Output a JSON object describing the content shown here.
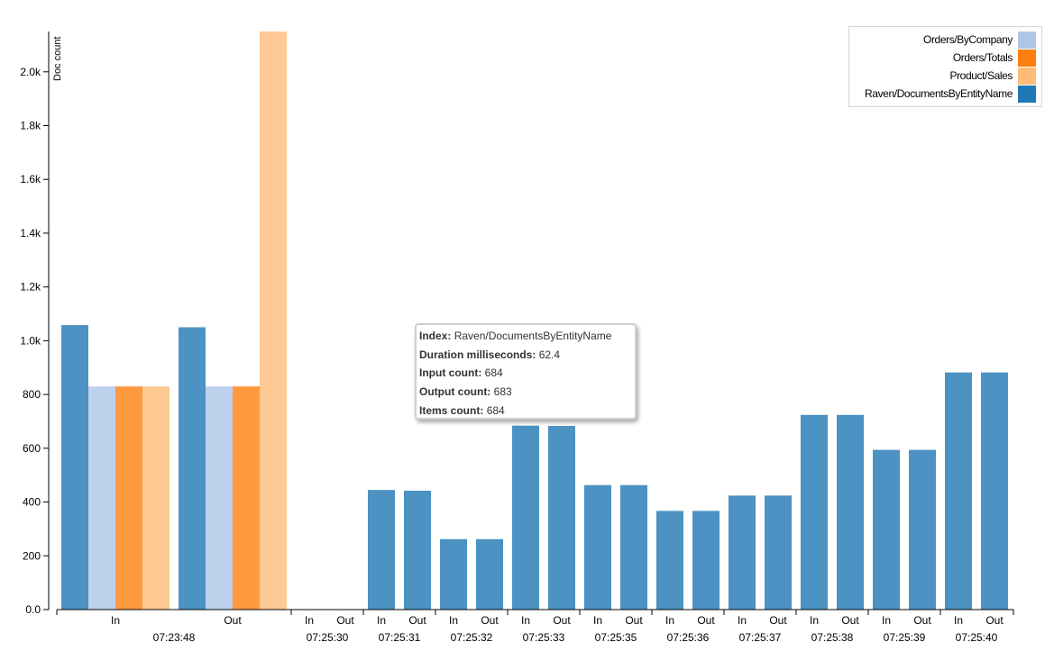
{
  "chart_data": {
    "type": "bar",
    "ylabel": "Doc count",
    "ylim": [
      0,
      2150
    ],
    "yticks": [
      0,
      200,
      400,
      600,
      800,
      1000,
      1200,
      1400,
      1600,
      1800,
      2000
    ],
    "ytick_labels": [
      "0.0",
      "200",
      "400",
      "600",
      "800",
      "1.0k",
      "1.2k",
      "1.4k",
      "1.6k",
      "1.8k",
      "2.0k"
    ],
    "series": [
      {
        "name": "Orders/ByCompany",
        "color": "#aec7e8"
      },
      {
        "name": "Orders/Totals",
        "color": "#ff7f0e"
      },
      {
        "name": "Product/Sales",
        "color": "#ffbb78"
      },
      {
        "name": "Raven/DocumentsByEntityName",
        "color": "#1f77b4"
      }
    ],
    "groups": [
      {
        "time": "07:23:48",
        "in_label": "In",
        "out_label": "Out",
        "in": {
          "Raven/DocumentsByEntityName": 1058,
          "Orders/ByCompany": 830,
          "Orders/Totals": 830,
          "Product/Sales": 830
        },
        "out": {
          "Raven/DocumentsByEntityName": 1050,
          "Orders/ByCompany": 830,
          "Orders/Totals": 830,
          "Product/Sales": 2150
        }
      },
      {
        "time": "07:25:30",
        "in_label": "In",
        "out_label": "Out",
        "in": {},
        "out": {}
      },
      {
        "time": "07:25:31",
        "in_label": "In",
        "out_label": "Out",
        "in": {
          "Raven/DocumentsByEntityName": 445
        },
        "out": {
          "Raven/DocumentsByEntityName": 442
        }
      },
      {
        "time": "07:25:32",
        "in_label": "In",
        "out_label": "Out",
        "in": {
          "Raven/DocumentsByEntityName": 262
        },
        "out": {
          "Raven/DocumentsByEntityName": 262
        }
      },
      {
        "time": "07:25:33",
        "in_label": "In",
        "out_label": "Out",
        "in": {
          "Raven/DocumentsByEntityName": 684
        },
        "out": {
          "Raven/DocumentsByEntityName": 683
        }
      },
      {
        "time": "07:25:35",
        "in_label": "In",
        "out_label": "Out",
        "in": {
          "Raven/DocumentsByEntityName": 463
        },
        "out": {
          "Raven/DocumentsByEntityName": 463
        }
      },
      {
        "time": "07:25:36",
        "in_label": "In",
        "out_label": "Out",
        "in": {
          "Raven/DocumentsByEntityName": 367
        },
        "out": {
          "Raven/DocumentsByEntityName": 367
        }
      },
      {
        "time": "07:25:37",
        "in_label": "In",
        "out_label": "Out",
        "in": {
          "Raven/DocumentsByEntityName": 424
        },
        "out": {
          "Raven/DocumentsByEntityName": 424
        }
      },
      {
        "time": "07:25:38",
        "in_label": "In",
        "out_label": "Out",
        "in": {
          "Raven/DocumentsByEntityName": 724
        },
        "out": {
          "Raven/DocumentsByEntityName": 724
        }
      },
      {
        "time": "07:25:39",
        "in_label": "In",
        "out_label": "Out",
        "in": {
          "Raven/DocumentsByEntityName": 594
        },
        "out": {
          "Raven/DocumentsByEntityName": 594
        }
      },
      {
        "time": "07:25:40",
        "in_label": "In",
        "out_label": "Out",
        "in": {
          "Raven/DocumentsByEntityName": 882
        },
        "out": {
          "Raven/DocumentsByEntityName": 882
        }
      }
    ]
  },
  "legend": {
    "items": [
      {
        "label": "Orders/ByCompany",
        "color": "#aec7e8"
      },
      {
        "label": "Orders/Totals",
        "color": "#ff7f0e"
      },
      {
        "label": "Product/Sales",
        "color": "#ffbb78"
      },
      {
        "label": "Raven/DocumentsByEntityName",
        "color": "#1f77b4"
      }
    ]
  },
  "tooltip": {
    "index_key": "Index:",
    "index_value": "Raven/DocumentsByEntityName",
    "duration_key": "Duration milliseconds:",
    "duration_value": "62.4",
    "input_key": "Input count:",
    "input_value": "684",
    "output_key": "Output count:",
    "output_value": "683",
    "items_key": "Items count:",
    "items_value": "684"
  }
}
